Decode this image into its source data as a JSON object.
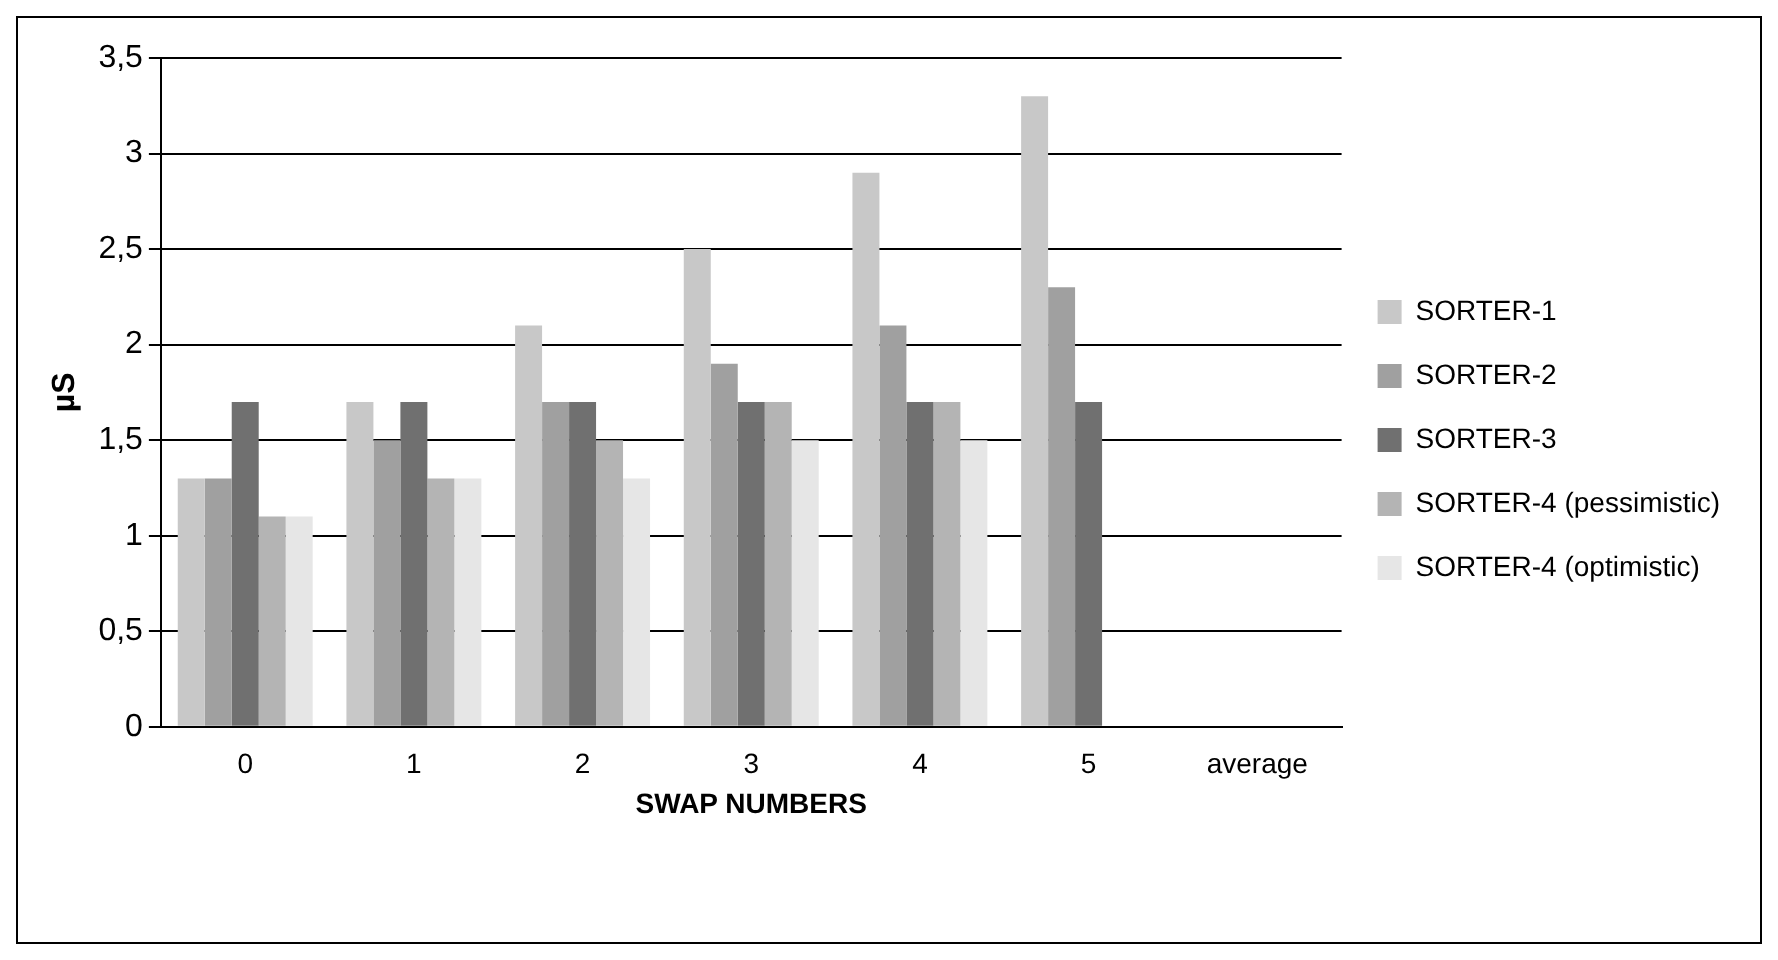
{
  "chart_data": {
    "type": "bar",
    "xlabel": "SWAP NUMBERS",
    "ylabel": "µS",
    "categories": [
      "0",
      "1",
      "2",
      "3",
      "4",
      "5",
      "average"
    ],
    "series": [
      {
        "name": "SORTER-1",
        "color": "#c8c8c8",
        "values": [
          1.3,
          1.7,
          2.1,
          2.5,
          2.9,
          3.3,
          null
        ]
      },
      {
        "name": "SORTER-2",
        "color": "#a0a0a0",
        "values": [
          1.3,
          1.5,
          1.7,
          1.9,
          2.1,
          2.3,
          null
        ]
      },
      {
        "name": "SORTER-3",
        "color": "#707070",
        "values": [
          1.7,
          1.7,
          1.7,
          1.7,
          1.7,
          1.7,
          null
        ]
      },
      {
        "name": "SORTER-4 (pessimistic)",
        "color": "#b4b4b4",
        "values": [
          1.1,
          1.3,
          1.5,
          1.7,
          1.7,
          null,
          null
        ]
      },
      {
        "name": "SORTER-4 (optimistic)",
        "color": "#e6e6e6",
        "values": [
          1.1,
          1.3,
          1.3,
          1.5,
          1.5,
          null,
          null
        ]
      }
    ],
    "ylim": [
      0,
      3.5
    ],
    "yticks": [
      0,
      {
        "value": 0.5,
        "label": "0,5"
      },
      1,
      {
        "value": 1.5,
        "label": "1,5"
      },
      2,
      {
        "value": 2.5,
        "label": "2,5"
      },
      3,
      {
        "value": 3.5,
        "label": "3,5"
      }
    ],
    "grid": "y",
    "legend": "right"
  }
}
